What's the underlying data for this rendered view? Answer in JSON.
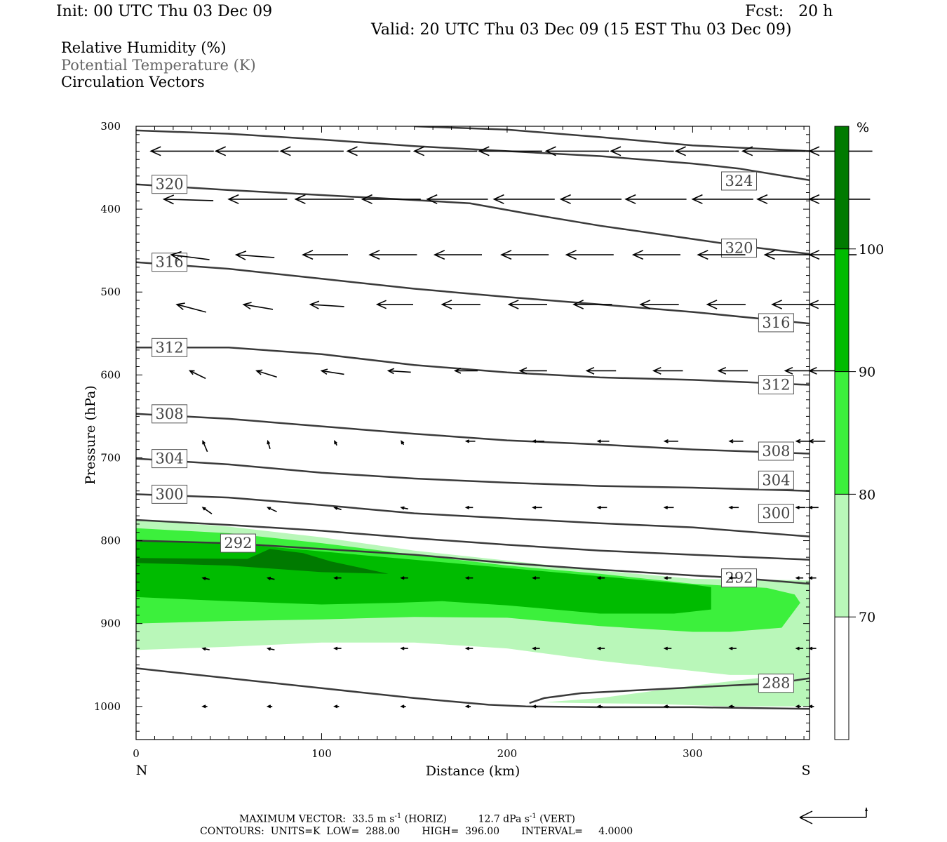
{
  "header": {
    "init": "Init: 00 UTC Thu 03 Dec 09",
    "fcst": "Fcst:   20 h",
    "valid": "Valid: 20 UTC Thu 03 Dec 09 (15 EST Thu 03 Dec 09)"
  },
  "legend": {
    "line1": "Relative Humidity (%)",
    "line2": "Potential Temperature (K)",
    "line3": "Circulation Vectors"
  },
  "footer": {
    "max_vector_label": "MAXIMUM VECTOR:",
    "horiz": "33.5 m s",
    "horiz_exp": "-1",
    "horiz_tail": " (HORIZ)",
    "vert": "12.7 dPa s",
    "vert_exp": "-1",
    "vert_tail": " (VERT)",
    "contours": "CONTOURS:  UNITS=K  LOW=  288.00       HIGH=  396.00       INTERVAL=     4.0000"
  },
  "colors": {
    "rh70": "#b9f7b9",
    "rh80": "#3cf03c",
    "rh90": "#00bb00",
    "rh100": "#007a00",
    "theta_line": "#3a3a3a"
  },
  "chart_data": {
    "type": "cross-section",
    "xlabel": "Distance (km)",
    "ylabel": "Pressure (hPa)",
    "xlim": [
      0,
      363
    ],
    "ylim": [
      1040,
      300
    ],
    "x_ticks": [
      0,
      100,
      200,
      300
    ],
    "y_ticks": [
      300,
      400,
      500,
      600,
      700,
      800,
      900,
      1000
    ],
    "x_end_labels": {
      "left": "N",
      "right": "S"
    },
    "colorbar": {
      "unit": "%",
      "levels": [
        70,
        80,
        90,
        100
      ],
      "labels": [
        "70",
        "80",
        "90",
        "100"
      ]
    },
    "rh_regions": [
      {
        "level": 70,
        "points": [
          [
            0,
            775
          ],
          [
            50,
            783
          ],
          [
            100,
            796
          ],
          [
            150,
            812
          ],
          [
            200,
            824
          ],
          [
            250,
            836
          ],
          [
            300,
            846
          ],
          [
            363,
            848
          ],
          [
            363,
            1000
          ],
          [
            320,
            1000
          ],
          [
            280,
            997
          ],
          [
            240,
            996
          ],
          [
            220,
            995
          ],
          [
            250,
            990
          ],
          [
            300,
            975
          ],
          [
            350,
            962
          ],
          [
            320,
            962
          ],
          [
            250,
            945
          ],
          [
            200,
            930
          ],
          [
            150,
            923
          ],
          [
            100,
            923
          ],
          [
            50,
            928
          ],
          [
            0,
            932
          ]
        ]
      },
      {
        "level": 80,
        "points": [
          [
            0,
            785
          ],
          [
            50,
            791
          ],
          [
            100,
            803
          ],
          [
            150,
            817
          ],
          [
            200,
            830
          ],
          [
            250,
            840
          ],
          [
            300,
            852
          ],
          [
            340,
            857
          ],
          [
            355,
            865
          ],
          [
            358,
            875
          ],
          [
            348,
            905
          ],
          [
            320,
            910
          ],
          [
            300,
            910
          ],
          [
            250,
            903
          ],
          [
            200,
            893
          ],
          [
            150,
            892
          ],
          [
            100,
            895
          ],
          [
            50,
            897
          ],
          [
            0,
            900
          ]
        ]
      },
      {
        "level": 90,
        "points": [
          [
            0,
            800
          ],
          [
            50,
            803
          ],
          [
            100,
            813
          ],
          [
            150,
            823
          ],
          [
            200,
            833
          ],
          [
            250,
            843
          ],
          [
            300,
            853
          ],
          [
            310,
            856
          ],
          [
            310,
            883
          ],
          [
            290,
            888
          ],
          [
            250,
            888
          ],
          [
            200,
            878
          ],
          [
            165,
            873
          ],
          [
            140,
            875
          ],
          [
            100,
            877
          ],
          [
            50,
            873
          ],
          [
            0,
            868
          ]
        ]
      },
      {
        "level": 100,
        "points": [
          [
            0,
            821
          ],
          [
            60,
            822
          ],
          [
            72,
            810
          ],
          [
            90,
            815
          ],
          [
            105,
            825
          ],
          [
            136,
            840
          ],
          [
            100,
            838
          ],
          [
            50,
            830
          ],
          [
            0,
            827
          ]
        ]
      }
    ],
    "theta_contours": [
      {
        "value": 288,
        "labels": [
          [
            345,
            972
          ]
        ],
        "points": [
          [
            212,
            996
          ],
          [
            220,
            990
          ],
          [
            240,
            984
          ],
          [
            300,
            977
          ],
          [
            345,
            972
          ],
          [
            363,
            966
          ]
        ]
      },
      {
        "value": 288,
        "labels": [],
        "points": [
          [
            0,
            954
          ],
          [
            50,
            966
          ],
          [
            100,
            978
          ],
          [
            150,
            990
          ],
          [
            190,
            998
          ],
          [
            210,
            1000
          ],
          [
            250,
            1001
          ],
          [
            300,
            1001
          ],
          [
            363,
            1003
          ]
        ]
      },
      {
        "value": 292,
        "labels": [
          [
            55,
            803
          ],
          [
            325,
            845
          ]
        ],
        "points": [
          [
            0,
            800
          ],
          [
            50,
            803
          ],
          [
            100,
            810
          ],
          [
            150,
            817
          ],
          [
            200,
            827
          ],
          [
            250,
            835
          ],
          [
            300,
            842
          ],
          [
            325,
            845
          ],
          [
            363,
            852
          ]
        ]
      },
      {
        "value": 296,
        "labels": [],
        "points": [
          [
            0,
            775
          ],
          [
            50,
            781
          ],
          [
            100,
            788
          ],
          [
            150,
            797
          ],
          [
            200,
            805
          ],
          [
            250,
            812
          ],
          [
            300,
            817
          ],
          [
            363,
            823
          ]
        ]
      },
      {
        "value": 300,
        "labels": [
          [
            18,
            744
          ],
          [
            345,
            767
          ]
        ],
        "points": [
          [
            0,
            744
          ],
          [
            50,
            748
          ],
          [
            100,
            757
          ],
          [
            150,
            767
          ],
          [
            200,
            773
          ],
          [
            250,
            779
          ],
          [
            300,
            784
          ],
          [
            363,
            795
          ]
        ]
      },
      {
        "value": 304,
        "labels": [
          [
            18,
            701
          ],
          [
            345,
            727
          ]
        ],
        "points": [
          [
            0,
            701
          ],
          [
            50,
            708
          ],
          [
            100,
            718
          ],
          [
            150,
            725
          ],
          [
            200,
            730
          ],
          [
            250,
            734
          ],
          [
            300,
            736
          ],
          [
            363,
            740
          ]
        ]
      },
      {
        "value": 308,
        "labels": [
          [
            18,
            647
          ],
          [
            345,
            692
          ]
        ],
        "points": [
          [
            0,
            647
          ],
          [
            50,
            653
          ],
          [
            100,
            662
          ],
          [
            150,
            671
          ],
          [
            200,
            679
          ],
          [
            250,
            684
          ],
          [
            300,
            690
          ],
          [
            363,
            695
          ]
        ]
      },
      {
        "value": 312,
        "labels": [
          [
            18,
            567
          ],
          [
            345,
            612
          ]
        ],
        "points": [
          [
            0,
            567
          ],
          [
            50,
            567
          ],
          [
            100,
            575
          ],
          [
            150,
            588
          ],
          [
            200,
            597
          ],
          [
            250,
            603
          ],
          [
            300,
            606
          ],
          [
            363,
            612
          ]
        ]
      },
      {
        "value": 316,
        "labels": [
          [
            18,
            464
          ],
          [
            345,
            537
          ]
        ],
        "points": [
          [
            0,
            464
          ],
          [
            50,
            472
          ],
          [
            100,
            484
          ],
          [
            150,
            496
          ],
          [
            200,
            506
          ],
          [
            250,
            515
          ],
          [
            300,
            524
          ],
          [
            363,
            538
          ]
        ]
      },
      {
        "value": 320,
        "labels": [
          [
            18,
            370
          ],
          [
            325,
            447
          ]
        ],
        "points": [
          [
            0,
            370
          ],
          [
            50,
            377
          ],
          [
            100,
            383
          ],
          [
            150,
            389
          ],
          [
            180,
            393
          ],
          [
            210,
            405
          ],
          [
            250,
            420
          ],
          [
            300,
            436
          ],
          [
            325,
            444
          ],
          [
            363,
            454
          ]
        ]
      },
      {
        "value": 324,
        "labels": [
          [
            325,
            366
          ]
        ],
        "points": [
          [
            0,
            305
          ],
          [
            50,
            309
          ],
          [
            100,
            316
          ],
          [
            150,
            324
          ],
          [
            200,
            330
          ],
          [
            250,
            336
          ],
          [
            300,
            345
          ],
          [
            325,
            351
          ],
          [
            363,
            365
          ]
        ]
      },
      {
        "value": 328,
        "labels": [],
        "points": [
          [
            150,
            300
          ],
          [
            200,
            304
          ],
          [
            250,
            313
          ],
          [
            300,
            323
          ],
          [
            363,
            330
          ]
        ]
      }
    ],
    "vector_rows": [
      {
        "p": 330,
        "x": [
          8,
          43,
          78,
          114,
          150,
          185,
          221,
          256,
          291,
          327,
          363
        ],
        "u": [
          -28,
          -28,
          -28,
          -28,
          -28,
          -28,
          -28,
          -28,
          -28,
          -28,
          -28
        ],
        "w": [
          0,
          0,
          0,
          0,
          0,
          0,
          0,
          0,
          0,
          0,
          0
        ]
      },
      {
        "p": 388,
        "x": [
          15,
          50,
          86,
          122,
          157,
          193,
          229,
          264,
          300,
          335,
          363
        ],
        "u": [
          -22,
          -26,
          -26,
          -26,
          -27,
          -27,
          -27,
          -27,
          -27,
          -27,
          -27
        ],
        "w": [
          2,
          0,
          0,
          0,
          0,
          0,
          0,
          0,
          0,
          0,
          0
        ]
      },
      {
        "p": 455,
        "x": [
          19,
          54,
          90,
          126,
          161,
          197,
          232,
          268,
          303,
          339,
          363
        ],
        "u": [
          -17,
          -17,
          -20,
          -21,
          -21,
          -21,
          -21,
          -21,
          -21,
          -21,
          -21
        ],
        "w": [
          7,
          4,
          0,
          0,
          0,
          0,
          0,
          0,
          0,
          0,
          0
        ]
      },
      {
        "p": 515,
        "x": [
          22,
          58,
          94,
          130,
          165,
          201,
          236,
          272,
          308,
          343,
          363
        ],
        "u": [
          -13,
          -13,
          -15,
          -16,
          -17,
          -17,
          -17,
          -17,
          -17,
          -17,
          -16
        ],
        "w": [
          11,
          7,
          3,
          0,
          0,
          0,
          0,
          0,
          0,
          0,
          0
        ]
      },
      {
        "p": 595,
        "x": [
          29,
          65,
          100,
          136,
          172,
          207,
          243,
          279,
          314,
          350,
          363
        ],
        "u": [
          -7,
          -9,
          -10,
          -10,
          -10,
          -12,
          -13,
          -13,
          -13,
          -13,
          -13
        ],
        "w": [
          11,
          9,
          5,
          2,
          0,
          0,
          0,
          0,
          0,
          0,
          0
        ]
      },
      {
        "p": 680,
        "x": [
          36,
          71,
          107,
          143,
          178,
          214,
          249,
          285,
          320,
          356,
          363
        ],
        "u": [
          -2,
          -1,
          -1,
          -1,
          -4,
          -5,
          -5,
          -6,
          -6,
          -7,
          -7
        ],
        "w": [
          15,
          11,
          6,
          5,
          0,
          0,
          0,
          0,
          0,
          0,
          0
        ]
      },
      {
        "p": 760,
        "x": [
          36,
          71,
          107,
          143,
          178,
          214,
          249,
          285,
          320,
          356,
          363
        ],
        "u": [
          -4,
          -4,
          -3,
          -3,
          -3,
          -4,
          -4,
          -4,
          -4,
          -4,
          -4
        ],
        "w": [
          9,
          6,
          3,
          2,
          0,
          0,
          0,
          0,
          0,
          0,
          0
        ]
      },
      {
        "p": 845,
        "x": [
          36,
          71,
          107,
          143,
          178,
          214,
          249,
          285,
          320,
          356,
          363
        ],
        "u": [
          -3,
          -3,
          -3,
          -3,
          -3,
          -3,
          -3,
          -3,
          -3,
          -3,
          -3
        ],
        "w": [
          2,
          2,
          0,
          0,
          0,
          0,
          0,
          0,
          0,
          0,
          0
        ]
      },
      {
        "p": 930,
        "x": [
          36,
          71,
          107,
          143,
          178,
          214,
          249,
          285,
          320,
          356,
          363
        ],
        "u": [
          -3,
          -3,
          -3,
          -3,
          -3,
          -3,
          -3,
          -3,
          -3,
          -3,
          -3
        ],
        "w": [
          2,
          2,
          0,
          0,
          0,
          0,
          0,
          0,
          0,
          0,
          0
        ]
      },
      {
        "p": 1000,
        "x": [
          36,
          71,
          107,
          143,
          178,
          214,
          249,
          285,
          320,
          356,
          363
        ],
        "u": [
          -2,
          -2,
          -2,
          -2,
          -2,
          -2,
          -2,
          -2,
          -2,
          -2,
          -2
        ],
        "w": [
          0,
          0,
          0,
          0,
          0,
          0,
          0,
          0,
          0,
          0,
          0
        ]
      }
    ]
  }
}
